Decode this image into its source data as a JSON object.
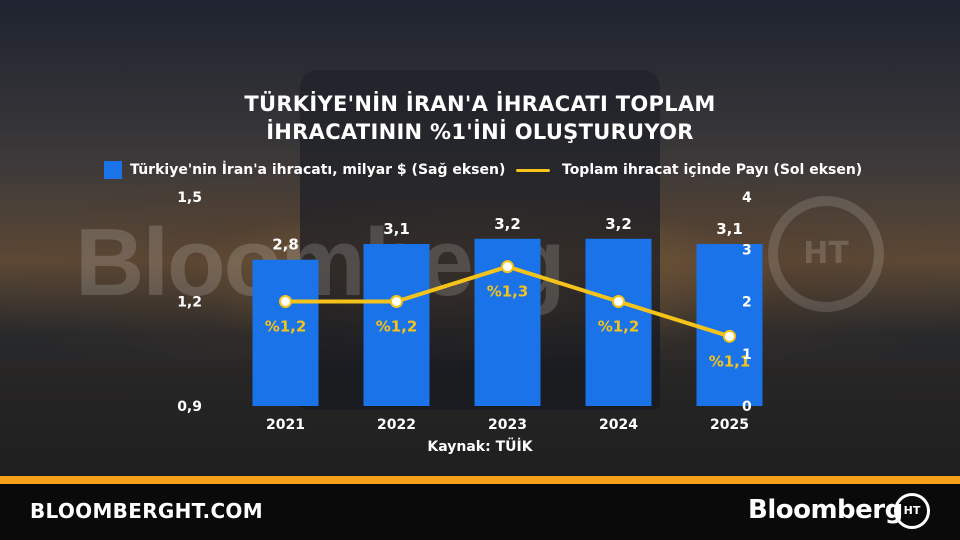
{
  "title_line1": "TÜRKİYE'NİN İRAN'A İHRACATI TOPLAM",
  "title_line2": "İHRACATININ %1'İNİ OLUŞTURUYOR",
  "legend": {
    "bar_label": "Türkiye'nin İran'a ihracatı, milyar $ (Sağ eksen)",
    "line_label": "Toplam ihracat içinde Payı (Sol eksen)"
  },
  "source": "Kaynak: TÜİK",
  "footer": {
    "site": "BLOOMBERGHT.COM",
    "brand": "Bloomberg",
    "logo_text": "HT"
  },
  "watermark": {
    "text": "Bloomberg",
    "logo_text": "HT"
  },
  "colors": {
    "bar": "#1a73e8",
    "line": "#f5c31a",
    "label": "#f5c31a",
    "accent_strip": "#f5a21a"
  },
  "chart_data": {
    "type": "bar+line",
    "categories": [
      "2021",
      "2022",
      "2023",
      "2024",
      "2025"
    ],
    "bar_series": {
      "values": [
        2.8,
        3.1,
        3.2,
        3.2,
        3.1
      ],
      "labels": [
        "2,8",
        "3,1",
        "3,2",
        "3,2",
        "3,1"
      ],
      "axis": "right"
    },
    "line_series": {
      "values": [
        1.2,
        1.2,
        1.3,
        1.2,
        1.1
      ],
      "labels": [
        "%1,2",
        "%1,2",
        "%1,3",
        "%1,2",
        "%1,1"
      ],
      "axis": "left"
    },
    "left_axis": {
      "range": [
        0.9,
        1.5
      ],
      "ticks": [
        "0,9",
        "1,2",
        "1,5"
      ],
      "tick_values": [
        0.9,
        1.2,
        1.5
      ]
    },
    "right_axis": {
      "range": [
        0,
        4
      ],
      "ticks": [
        "0",
        "1",
        "2",
        "3",
        "4"
      ],
      "tick_values": [
        0,
        1,
        2,
        3,
        4
      ]
    },
    "grid": false,
    "legend_position": "top"
  }
}
